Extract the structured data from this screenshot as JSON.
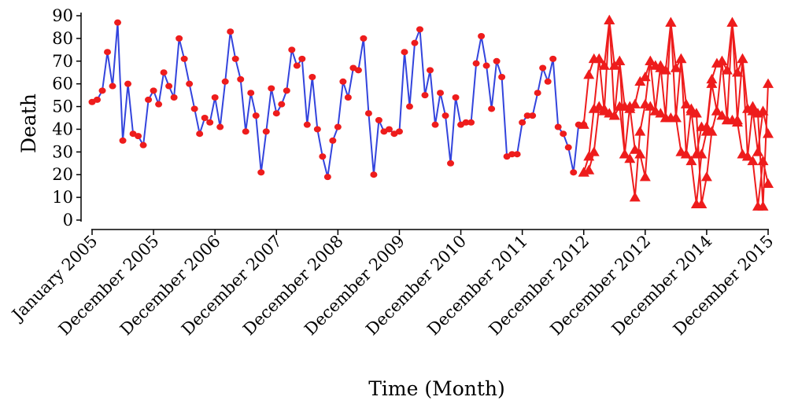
{
  "chart_data": {
    "type": "line",
    "title": "",
    "xlabel": "Time (Month)",
    "ylabel": "Death",
    "ylim": [
      0,
      90
    ],
    "yticks": [
      0,
      10,
      20,
      30,
      40,
      50,
      60,
      70,
      80,
      90
    ],
    "xlim": [
      1,
      133
    ],
    "xtick_positions": [
      1,
      13,
      25,
      37,
      49,
      61,
      73,
      85,
      97,
      109,
      121,
      133
    ],
    "xtick_labels": [
      "January 2005",
      "December 2005",
      "December 2006",
      "December 2007",
      "December 2008",
      "December 2009",
      "December 2010",
      "December 2011",
      "December 2012",
      "December 2012",
      "December 2014",
      "December 2015"
    ],
    "grid": false,
    "legend": "none",
    "series": [
      {
        "color": "#3344dd",
        "marker": "circle",
        "marker_color": "#ee1c1c",
        "x": [
          1,
          2,
          3,
          4,
          5,
          6,
          7,
          8,
          9,
          10,
          11,
          12,
          13,
          14,
          15,
          16,
          17,
          18,
          19,
          20,
          21,
          22,
          23,
          24,
          25,
          26,
          27,
          28,
          29,
          30,
          31,
          32,
          33,
          34,
          35,
          36,
          37,
          38,
          39,
          40,
          41,
          42,
          43,
          44,
          45,
          46,
          47,
          48,
          49,
          50,
          51,
          52,
          53,
          54,
          55,
          56,
          57,
          58,
          59,
          60,
          61,
          62,
          63,
          64,
          65,
          66,
          67,
          68,
          69,
          70,
          71,
          72,
          73,
          74,
          75,
          76,
          77,
          78,
          79,
          80,
          81,
          82,
          83,
          84,
          85,
          86,
          87,
          88,
          89,
          90,
          91,
          92,
          93,
          94,
          95,
          96,
          97
        ],
        "y": [
          52,
          53,
          57,
          74,
          59,
          87,
          35,
          60,
          38,
          37,
          33,
          53,
          57,
          51,
          65,
          59,
          54,
          80,
          71,
          60,
          49,
          38,
          45,
          43,
          54,
          41,
          61,
          83,
          71,
          62,
          39,
          56,
          46,
          21,
          39,
          58,
          47,
          51,
          57,
          75,
          68,
          71,
          42,
          63,
          40,
          28,
          19,
          35,
          41,
          61,
          54,
          67,
          66,
          80,
          47,
          20,
          44,
          39,
          40,
          38,
          39,
          74,
          50,
          78,
          84,
          55,
          66,
          42,
          56,
          46,
          25,
          54,
          42,
          43,
          43,
          69,
          81,
          68,
          49,
          70,
          63,
          28,
          29,
          29,
          43,
          46,
          46,
          56,
          67,
          61,
          71,
          41,
          38,
          32,
          21,
          42,
          42
        ]
      },
      {
        "color": "#ee1c1c",
        "marker": "triangle",
        "x": [
          97,
          98,
          99,
          100,
          101,
          102,
          103,
          104,
          105,
          106,
          107,
          108,
          109,
          110,
          111,
          112,
          113,
          114,
          115,
          116,
          117,
          118,
          119,
          120,
          121,
          122,
          123,
          124,
          125,
          126,
          127,
          128,
          129,
          130,
          131,
          132,
          133
        ],
        "y": [
          21,
          28,
          49,
          71,
          48,
          88,
          46,
          70,
          29,
          27,
          10,
          39,
          51,
          70,
          48,
          68,
          45,
          87,
          45,
          71,
          29,
          26,
          7,
          29,
          39,
          60,
          48,
          70,
          44,
          87,
          44,
          71,
          28,
          26,
          6,
          26,
          16
        ]
      },
      {
        "color": "#ee1c1c",
        "marker": "triangle",
        "x": [
          97,
          98,
          99,
          100,
          101,
          102,
          103,
          104,
          105,
          106,
          107,
          108,
          109,
          110,
          111,
          112,
          113,
          114,
          115,
          116,
          117,
          118,
          119,
          120,
          121,
          122,
          123,
          124,
          125,
          126,
          127,
          128,
          129,
          130,
          131,
          132,
          133
        ],
        "y": [
          42,
          64,
          71,
          71,
          68,
          88,
          68,
          70,
          50,
          49,
          51,
          61,
          63,
          70,
          68,
          67,
          66,
          87,
          67,
          71,
          51,
          48,
          29,
          41,
          41,
          62,
          69,
          70,
          66,
          87,
          65,
          71,
          49,
          48,
          30,
          48,
          38
        ]
      },
      {
        "color": "#ee1c1c",
        "marker": "triangle",
        "x": [
          97,
          98,
          99,
          100,
          101,
          102,
          103,
          104,
          105,
          106,
          107,
          108,
          109,
          110,
          111,
          112,
          113,
          114,
          115,
          116,
          117,
          118,
          119,
          120,
          121,
          122,
          123,
          124,
          125,
          126,
          127,
          128,
          129,
          130,
          131,
          132,
          133
        ],
        "y": [
          21,
          22,
          30,
          50,
          49,
          47,
          46,
          50,
          29,
          50,
          31,
          29,
          19,
          50,
          48,
          47,
          45,
          45,
          45,
          30,
          29,
          49,
          47,
          7,
          19,
          39,
          48,
          46,
          44,
          44,
          43,
          29,
          28,
          50,
          47,
          6,
          60
        ]
      }
    ]
  }
}
